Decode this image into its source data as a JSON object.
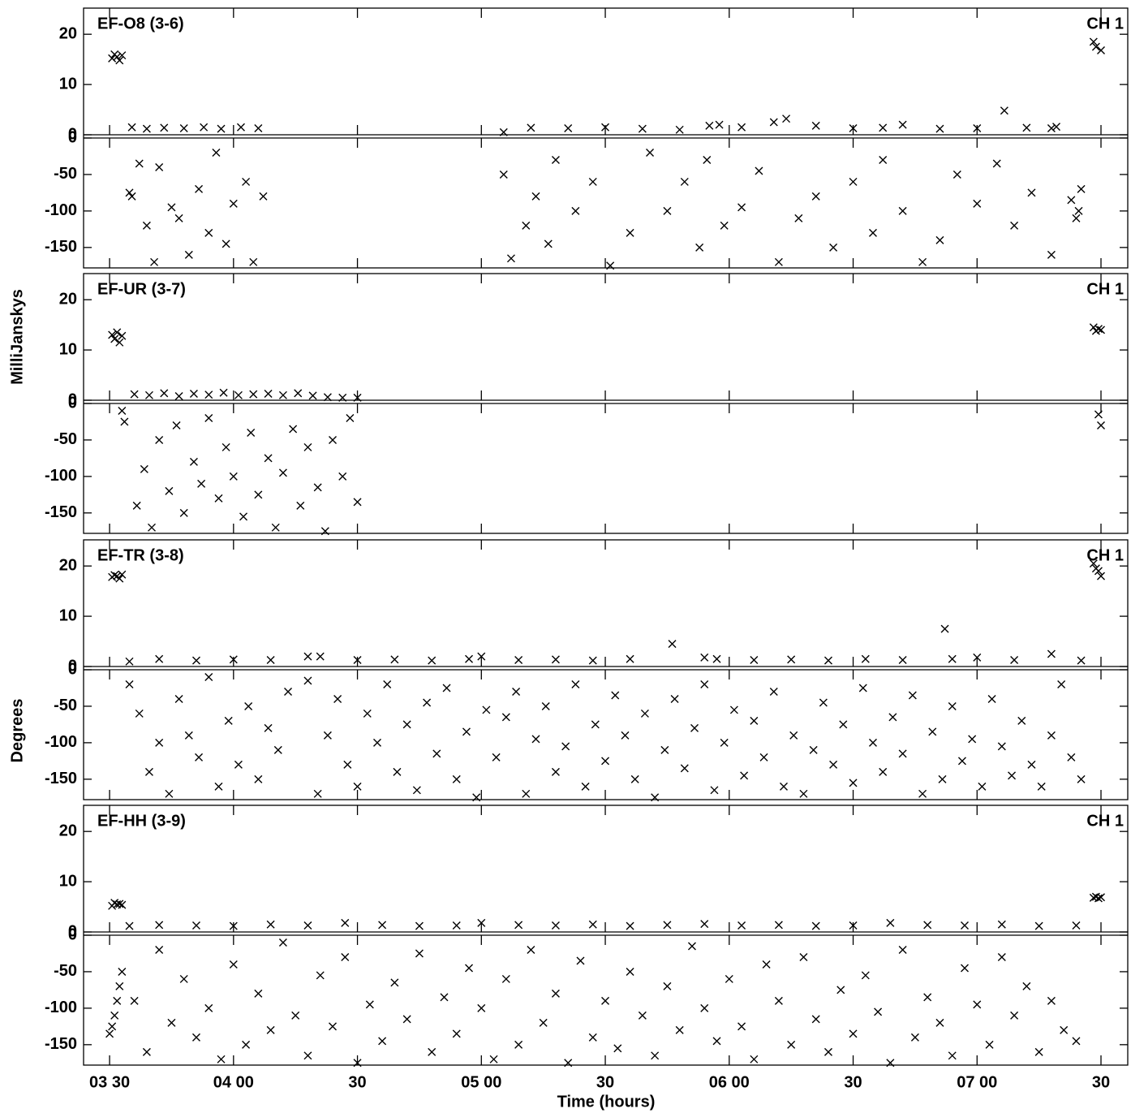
{
  "chart_data": {
    "type": "scatter",
    "x_label": "Time (hours)",
    "y_label_amplitude": "MilliJanskys",
    "y_label_phase": "Degrees",
    "xlim": [
      3.395,
      7.608
    ],
    "xticks": [
      {
        "value": 3.5,
        "label": "03 30"
      },
      {
        "value": 4.0,
        "label": "04 00"
      },
      {
        "value": 4.5,
        "label": "30"
      },
      {
        "value": 5.0,
        "label": "05 00"
      },
      {
        "value": 5.5,
        "label": "30"
      },
      {
        "value": 6.0,
        "label": "06 00"
      },
      {
        "value": 6.5,
        "label": "30"
      },
      {
        "value": 7.0,
        "label": "07 00"
      },
      {
        "value": 7.5,
        "label": "30"
      }
    ],
    "ylim": [
      0,
      25.2
    ],
    "yticks": [
      0,
      10,
      20
    ],
    "y2lim": [
      -178,
      0
    ],
    "y2ticks": [
      -150,
      -100,
      -50,
      0
    ],
    "panels": [
      {
        "title": "EF-O8 (3-6)",
        "label": "CH 1",
        "series": [
          {
            "axis": "y",
            "color": "#000000",
            "x": [
              3.51,
              3.52,
              3.53,
              3.54,
              3.55,
              3.59,
              3.65,
              3.72,
              3.8,
              3.88,
              3.95,
              4.03,
              4.1,
              5.09,
              5.2,
              5.35,
              5.5,
              5.65,
              5.8,
              5.92,
              5.96,
              6.05,
              6.18,
              6.23,
              6.35,
              6.5,
              6.62,
              6.7,
              6.85,
              7.0,
              7.11,
              7.2,
              7.3,
              7.32,
              7.47,
              7.48,
              7.5
            ],
            "values": [
              15.2,
              16.0,
              15.5,
              14.8,
              15.8,
              1.5,
              1.2,
              1.4,
              1.3,
              1.5,
              1.2,
              1.5,
              1.3,
              0.5,
              1.4,
              1.3,
              1.5,
              1.2,
              1.0,
              1.8,
              2.0,
              1.5,
              2.5,
              3.2,
              1.8,
              1.3,
              1.4,
              2.0,
              1.2,
              1.3,
              4.8,
              1.4,
              1.3,
              1.6,
              18.5,
              17.5,
              16.8
            ]
          },
          {
            "axis": "y2",
            "color": "#000000",
            "x": [
              3.58,
              3.59,
              3.62,
              3.65,
              3.68,
              3.7,
              3.75,
              3.78,
              3.82,
              3.86,
              3.9,
              3.93,
              3.97,
              4.0,
              4.05,
              4.08,
              4.12,
              5.09,
              5.12,
              5.18,
              5.22,
              5.27,
              5.3,
              5.38,
              5.45,
              5.52,
              5.6,
              5.68,
              5.75,
              5.82,
              5.88,
              5.91,
              5.98,
              6.05,
              6.12,
              6.2,
              6.28,
              6.35,
              6.42,
              6.5,
              6.58,
              6.62,
              6.7,
              6.78,
              6.85,
              6.92,
              7.0,
              7.08,
              7.15,
              7.22,
              7.3,
              7.38,
              7.4,
              7.41,
              7.42
            ],
            "values": [
              -75,
              -80,
              -35,
              -120,
              -170,
              -40,
              -95,
              -110,
              -160,
              -70,
              -130,
              -20,
              -145,
              -90,
              -60,
              -170,
              -80,
              -50,
              -165,
              -120,
              -80,
              -145,
              -30,
              -100,
              -60,
              -175,
              -130,
              -20,
              -100,
              -60,
              -150,
              -30,
              -120,
              -95,
              -45,
              -170,
              -110,
              -80,
              -150,
              -60,
              -130,
              -30,
              -100,
              -170,
              -140,
              -50,
              -90,
              -35,
              -120,
              -75,
              -160,
              -85,
              -110,
              -100,
              -70
            ]
          }
        ]
      },
      {
        "title": "EF-UR (3-7)",
        "label": "CH 1",
        "series": [
          {
            "axis": "y",
            "color": "#000000",
            "x": [
              3.51,
              3.52,
              3.53,
              3.54,
              3.55,
              3.6,
              3.66,
              3.72,
              3.78,
              3.84,
              3.9,
              3.96,
              4.02,
              4.08,
              4.14,
              4.2,
              4.26,
              4.32,
              4.38,
              4.44,
              4.5,
              7.47,
              7.48,
              7.49,
              7.5
            ],
            "values": [
              13.0,
              12.2,
              13.5,
              11.5,
              12.8,
              1.2,
              1.0,
              1.4,
              0.8,
              1.3,
              1.1,
              1.5,
              1.0,
              1.2,
              1.3,
              1.0,
              1.4,
              0.9,
              0.6,
              0.5,
              0.5,
              14.5,
              13.8,
              14.2,
              14.0
            ]
          },
          {
            "axis": "y2",
            "color": "#000000",
            "x": [
              3.55,
              3.56,
              3.61,
              3.64,
              3.67,
              3.7,
              3.74,
              3.77,
              3.8,
              3.84,
              3.87,
              3.9,
              3.94,
              3.97,
              4.0,
              4.04,
              4.07,
              4.1,
              4.14,
              4.17,
              4.2,
              4.24,
              4.27,
              4.3,
              4.34,
              4.37,
              4.4,
              4.44,
              4.47,
              4.5,
              7.49,
              7.5
            ],
            "values": [
              -10,
              -25,
              -140,
              -90,
              -170,
              -50,
              -120,
              -30,
              -150,
              -80,
              -110,
              -20,
              -130,
              -60,
              -100,
              -155,
              -40,
              -125,
              -75,
              -170,
              -95,
              -35,
              -140,
              -60,
              -115,
              -175,
              -50,
              -100,
              -20,
              -135,
              -15,
              -30
            ]
          }
        ]
      },
      {
        "title": "EF-TR (3-8)",
        "label": "CH 1",
        "series": [
          {
            "axis": "y",
            "color": "#000000",
            "x": [
              3.51,
              3.52,
              3.53,
              3.54,
              3.55,
              3.58,
              3.7,
              3.85,
              4.0,
              4.15,
              4.3,
              4.35,
              4.5,
              4.65,
              4.8,
              4.95,
              5.0,
              5.15,
              5.3,
              5.45,
              5.6,
              5.77,
              5.9,
              5.95,
              6.1,
              6.25,
              6.4,
              6.55,
              6.7,
              6.87,
              6.9,
              7.0,
              7.15,
              7.3,
              7.42,
              7.47,
              7.48,
              7.49,
              7.5
            ],
            "values": [
              17.8,
              18.2,
              18.0,
              17.5,
              18.3,
              1.0,
              1.5,
              1.2,
              1.4,
              1.3,
              2.0,
              2.0,
              1.3,
              1.4,
              1.2,
              1.5,
              2.0,
              1.3,
              1.4,
              1.2,
              1.5,
              4.5,
              1.8,
              1.5,
              1.3,
              1.4,
              1.2,
              1.5,
              1.3,
              7.5,
              1.5,
              1.8,
              1.3,
              2.5,
              1.2,
              20.5,
              19.5,
              19.0,
              18.0
            ]
          },
          {
            "axis": "y2",
            "color": "#000000",
            "x": [
              3.58,
              3.62,
              3.66,
              3.7,
              3.74,
              3.78,
              3.82,
              3.86,
              3.9,
              3.94,
              3.98,
              4.02,
              4.06,
              4.1,
              4.14,
              4.18,
              4.22,
              4.3,
              4.34,
              4.38,
              4.42,
              4.46,
              4.5,
              4.54,
              4.58,
              4.62,
              4.66,
              4.7,
              4.74,
              4.78,
              4.82,
              4.86,
              4.9,
              4.94,
              4.98,
              5.02,
              5.06,
              5.1,
              5.14,
              5.18,
              5.22,
              5.26,
              5.3,
              5.34,
              5.38,
              5.42,
              5.46,
              5.5,
              5.54,
              5.58,
              5.62,
              5.66,
              5.7,
              5.74,
              5.78,
              5.82,
              5.86,
              5.9,
              5.94,
              5.98,
              6.02,
              6.06,
              6.1,
              6.14,
              6.18,
              6.22,
              6.26,
              6.3,
              6.34,
              6.38,
              6.42,
              6.46,
              6.5,
              6.54,
              6.58,
              6.62,
              6.66,
              6.7,
              6.74,
              6.78,
              6.82,
              6.86,
              6.9,
              6.94,
              6.98,
              7.02,
              7.06,
              7.1,
              7.14,
              7.18,
              7.22,
              7.26,
              7.3,
              7.34,
              7.38,
              7.42
            ],
            "values": [
              -20,
              -60,
              -140,
              -100,
              -170,
              -40,
              -90,
              -120,
              -10,
              -160,
              -70,
              -130,
              -50,
              -150,
              -80,
              -110,
              -30,
              -15,
              -170,
              -90,
              -40,
              -130,
              -160,
              -60,
              -100,
              -20,
              -140,
              -75,
              -165,
              -45,
              -115,
              -25,
              -150,
              -85,
              -175,
              -55,
              -120,
              -65,
              -30,
              -170,
              -95,
              -50,
              -140,
              -105,
              -20,
              -160,
              -75,
              -125,
              -35,
              -90,
              -150,
              -60,
              -175,
              -110,
              -40,
              -135,
              -80,
              -20,
              -165,
              -100,
              -55,
              -145,
              -70,
              -120,
              -30,
              -160,
              -90,
              -170,
              -110,
              -45,
              -130,
              -75,
              -155,
              -25,
              -100,
              -140,
              -65,
              -115,
              -35,
              -170,
              -85,
              -150,
              -50,
              -125,
              -95,
              -160,
              -40,
              -105,
              -145,
              -70,
              -130,
              -160,
              -90,
              -20,
              -120,
              -150
            ]
          }
        ]
      },
      {
        "title": "EF-HH (3-9)",
        "label": "CH 1",
        "series": [
          {
            "axis": "y",
            "color": "#000000",
            "x": [
              3.51,
              3.52,
              3.53,
              3.54,
              3.55,
              3.58,
              3.7,
              3.85,
              4.0,
              4.15,
              4.3,
              4.45,
              4.6,
              4.75,
              4.9,
              5.0,
              5.15,
              5.3,
              5.45,
              5.6,
              5.75,
              5.9,
              6.05,
              6.2,
              6.35,
              6.5,
              6.65,
              6.8,
              6.95,
              7.1,
              7.25,
              7.4,
              7.47,
              7.48,
              7.49,
              7.5
            ],
            "values": [
              5.2,
              5.8,
              5.5,
              5.6,
              5.4,
              1.2,
              1.4,
              1.3,
              1.2,
              1.5,
              1.3,
              1.8,
              1.4,
              1.2,
              1.3,
              1.8,
              1.4,
              1.3,
              1.5,
              1.2,
              1.4,
              1.6,
              1.3,
              1.4,
              1.2,
              1.3,
              1.8,
              1.4,
              1.3,
              1.5,
              1.2,
              1.3,
              6.8,
              7.0,
              6.7,
              6.9
            ]
          },
          {
            "axis": "y2",
            "color": "#000000",
            "x": [
              3.5,
              3.51,
              3.52,
              3.53,
              3.54,
              3.55,
              3.6,
              3.65,
              3.7,
              3.75,
              3.8,
              3.85,
              3.9,
              3.95,
              4.0,
              4.05,
              4.1,
              4.15,
              4.2,
              4.25,
              4.3,
              4.35,
              4.4,
              4.45,
              4.5,
              4.55,
              4.6,
              4.65,
              4.7,
              4.75,
              4.8,
              4.85,
              4.9,
              4.95,
              5.0,
              5.05,
              5.1,
              5.15,
              5.2,
              5.25,
              5.3,
              5.35,
              5.4,
              5.45,
              5.5,
              5.55,
              5.6,
              5.65,
              5.7,
              5.75,
              5.8,
              5.85,
              5.9,
              5.95,
              6.0,
              6.05,
              6.1,
              6.15,
              6.2,
              6.25,
              6.3,
              6.35,
              6.4,
              6.45,
              6.5,
              6.55,
              6.6,
              6.65,
              6.7,
              6.75,
              6.8,
              6.85,
              6.9,
              6.95,
              7.0,
              7.05,
              7.1,
              7.15,
              7.2,
              7.25,
              7.3,
              7.35,
              7.4
            ],
            "values": [
              -135,
              -125,
              -110,
              -90,
              -70,
              -50,
              -90,
              -160,
              -20,
              -120,
              -60,
              -140,
              -100,
              -170,
              -40,
              -150,
              -80,
              -130,
              -10,
              -110,
              -165,
              -55,
              -125,
              -30,
              -175,
              -95,
              -145,
              -65,
              -115,
              -25,
              -160,
              -85,
              -135,
              -45,
              -100,
              -170,
              -60,
              -150,
              -20,
              -120,
              -80,
              -175,
              -35,
              -140,
              -90,
              -155,
              -50,
              -110,
              -165,
              -70,
              -130,
              -15,
              -100,
              -145,
              -60,
              -125,
              -170,
              -40,
              -90,
              -150,
              -30,
              -115,
              -160,
              -75,
              -135,
              -55,
              -105,
              -175,
              -20,
              -140,
              -85,
              -120,
              -165,
              -45,
              -95,
              -150,
              -30,
              -110,
              -70,
              -160,
              -90,
              -130,
              -145
            ]
          }
        ]
      }
    ]
  }
}
